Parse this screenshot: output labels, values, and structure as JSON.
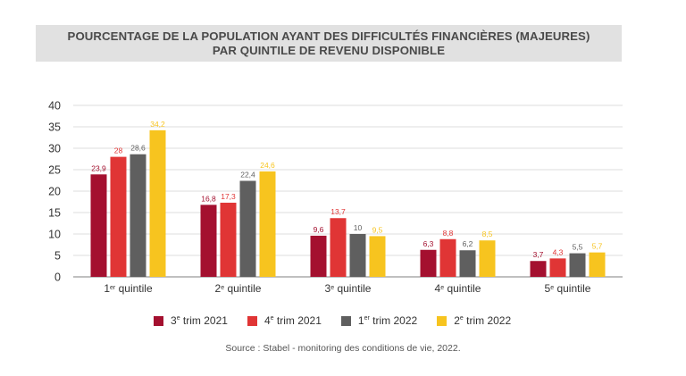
{
  "title": {
    "line1": "POURCENTAGE DE LA POPULATION AYANT DES DIFFICULTÉS FINANCIÈRES (MAJEURES)",
    "line2": "PAR QUINTILE DE REVENU DISPONIBLE"
  },
  "source": "Source : Stabel - monitoring des conditions de vie, 2022.",
  "chart_data": {
    "type": "bar",
    "categories": [
      "1er quintile",
      "2e quintile",
      "3e quintile",
      "4e quintile",
      "5e quintile"
    ],
    "y_ticks": [
      "0",
      "5",
      "10",
      "15",
      "20",
      "25",
      "30",
      "35",
      "40"
    ],
    "ylim": [
      0,
      40
    ],
    "grid": true,
    "legend_position": "bottom",
    "series": [
      {
        "name": "3e trim 2021",
        "color": "#a4102f",
        "values": [
          23.9,
          16.8,
          9.6,
          6.3,
          3.7
        ],
        "labels": [
          "23,9",
          "16,8",
          "9,6",
          "6,3",
          "3,7"
        ]
      },
      {
        "name": "4e trim 2021",
        "color": "#e03535",
        "values": [
          28,
          17.3,
          13.7,
          8.8,
          4.3
        ],
        "labels": [
          "28",
          "17,3",
          "13,7",
          "8,8",
          "4,3"
        ]
      },
      {
        "name": "1er trim 2022",
        "color": "#5f5f5f",
        "values": [
          28.6,
          22.4,
          10,
          6.2,
          5.5
        ],
        "labels": [
          "28,6",
          "22,4",
          "10",
          "6,2",
          "5,5"
        ]
      },
      {
        "name": "2e trim 2022",
        "color": "#f7c41f",
        "values": [
          34.2,
          24.6,
          9.5,
          8.5,
          5.7
        ],
        "labels": [
          "34,2",
          "24,6",
          "9,5",
          "8,5",
          "5,7"
        ]
      }
    ]
  }
}
